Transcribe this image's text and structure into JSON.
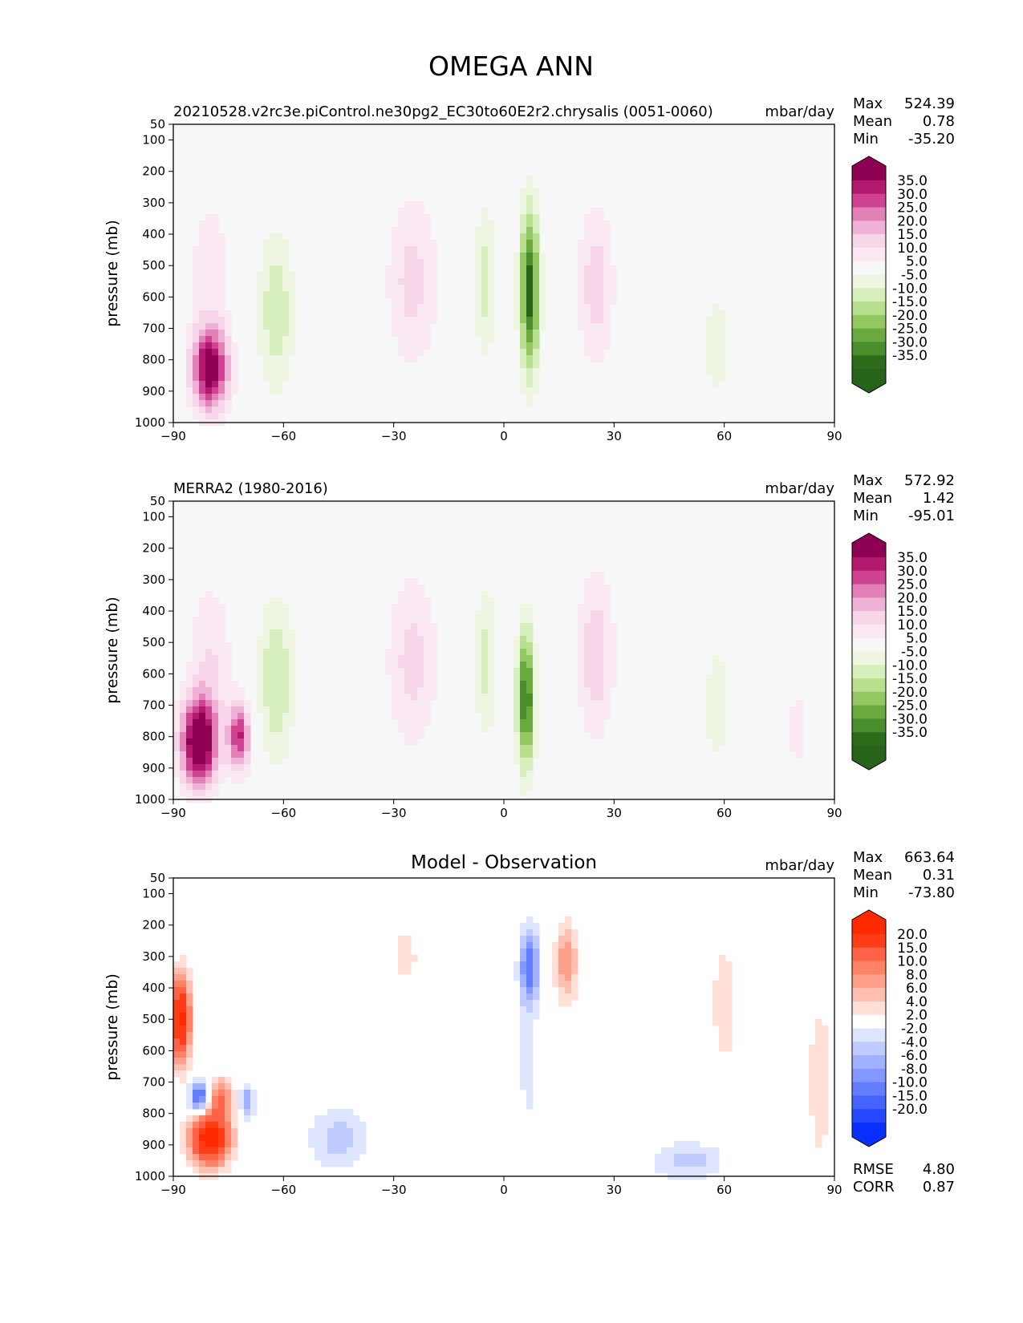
{
  "figure": {
    "title": "OMEGA ANN"
  },
  "chart_data": [
    {
      "type": "heatmap",
      "title_left": "20210528.v2rc3e.piControl.ne30pg2_EC30to60E2r2.chrysalis (0051-0060)",
      "title_center": "",
      "units": "mbar/day",
      "ylabel": "pressure (mb)",
      "xlim": [
        -90,
        90
      ],
      "ylim": [
        1000,
        50
      ],
      "x_ticks": [
        -90,
        -60,
        -30,
        0,
        30,
        60,
        90
      ],
      "x_tick_labels": [
        "−90",
        "−60",
        "−30",
        "0",
        "30",
        "60",
        "90"
      ],
      "y_ticks": [
        50,
        100,
        200,
        300,
        400,
        500,
        600,
        700,
        800,
        900,
        1000
      ],
      "y_tick_labels": [
        "50",
        "100",
        "200",
        "300",
        "400",
        "500",
        "600",
        "700",
        "800",
        "900",
        "1000"
      ],
      "stats": {
        "labels": [
          "Max",
          "Mean",
          "Min"
        ],
        "values": [
          "524.39",
          "0.78",
          "-35.20"
        ]
      },
      "colorbar": {
        "labels": [
          "35.0",
          "30.0",
          "25.0",
          "20.0",
          "15.0",
          "10.0",
          "5.0",
          "-5.0",
          "-10.0",
          "-15.0",
          "-20.0",
          "-25.0",
          "-30.0",
          "-35.0"
        ],
        "colors": [
          "#8e0152",
          "#b3196e",
          "#cf4393",
          "#e181b8",
          "#efb2d6",
          "#f7d6ea",
          "#fae9f3",
          "#f7f7f7",
          "#eef6e1",
          "#d7efbd",
          "#b8e08e",
          "#93c761",
          "#6aa93d",
          "#4a8d2c",
          "#2c6b1a",
          "#276419"
        ]
      },
      "features": [
        {
          "lat": -80,
          "p": 830,
          "wlat": 5,
          "wp": 130,
          "v": 40
        },
        {
          "lat": -80,
          "p": 500,
          "wlat": 6,
          "wp": 250,
          "v": 8
        },
        {
          "lat": -62,
          "p": 650,
          "wlat": 5,
          "wp": 260,
          "v": -14
        },
        {
          "lat": -25,
          "p": 550,
          "wlat": 7,
          "wp": 280,
          "v": 12
        },
        {
          "lat": -5,
          "p": 550,
          "wlat": 3,
          "wp": 250,
          "v": -12
        },
        {
          "lat": 7,
          "p": 580,
          "wlat": 2.6,
          "wp": 260,
          "v": -38
        },
        {
          "lat": 25,
          "p": 560,
          "wlat": 5,
          "wp": 260,
          "v": 13
        },
        {
          "lat": 58,
          "p": 750,
          "wlat": 4,
          "wp": 200,
          "v": -8
        }
      ]
    },
    {
      "type": "heatmap",
      "title_left": "MERRA2 (1980-2016)",
      "title_center": "",
      "units": "mbar/day",
      "ylabel": "pressure (mb)",
      "xlim": [
        -90,
        90
      ],
      "ylim": [
        1000,
        50
      ],
      "x_ticks": [
        -90,
        -60,
        -30,
        0,
        30,
        60,
        90
      ],
      "x_tick_labels": [
        "−90",
        "−60",
        "−30",
        "0",
        "30",
        "60",
        "90"
      ],
      "y_ticks": [
        50,
        100,
        200,
        300,
        400,
        500,
        600,
        700,
        800,
        900,
        1000
      ],
      "y_tick_labels": [
        "50",
        "100",
        "200",
        "300",
        "400",
        "500",
        "600",
        "700",
        "800",
        "900",
        "1000"
      ],
      "stats": {
        "labels": [
          "Max",
          "Mean",
          "Min"
        ],
        "values": [
          "572.92",
          "1.42",
          "-95.01"
        ]
      },
      "colorbar": {
        "labels": [
          "35.0",
          "30.0",
          "25.0",
          "20.0",
          "15.0",
          "10.0",
          "5.0",
          "-5.0",
          "-10.0",
          "-15.0",
          "-20.0",
          "-25.0",
          "-30.0",
          "-35.0"
        ],
        "colors": [
          "#8e0152",
          "#b3196e",
          "#cf4393",
          "#e181b8",
          "#efb2d6",
          "#f7d6ea",
          "#fae9f3",
          "#f7f7f7",
          "#eef6e1",
          "#d7efbd",
          "#b8e08e",
          "#93c761",
          "#6aa93d",
          "#4a8d2c",
          "#2c6b1a",
          "#276419"
        ]
      },
      "features": [
        {
          "lat": -83,
          "p": 820,
          "wlat": 5,
          "wp": 140,
          "v": 45
        },
        {
          "lat": -72,
          "p": 800,
          "wlat": 3,
          "wp": 110,
          "v": 30
        },
        {
          "lat": -80,
          "p": 550,
          "wlat": 6,
          "wp": 250,
          "v": 10
        },
        {
          "lat": -62,
          "p": 620,
          "wlat": 5,
          "wp": 260,
          "v": -15
        },
        {
          "lat": -25,
          "p": 560,
          "wlat": 7,
          "wp": 280,
          "v": 12
        },
        {
          "lat": -5,
          "p": 560,
          "wlat": 3,
          "wp": 250,
          "v": -12
        },
        {
          "lat": 6,
          "p": 680,
          "wlat": 2.4,
          "wp": 220,
          "v": -36
        },
        {
          "lat": 25,
          "p": 540,
          "wlat": 5,
          "wp": 260,
          "v": 14
        },
        {
          "lat": 58,
          "p": 700,
          "wlat": 4,
          "wp": 220,
          "v": -8
        },
        {
          "lat": 80,
          "p": 780,
          "wlat": 3,
          "wp": 140,
          "v": 8
        }
      ]
    },
    {
      "type": "heatmap",
      "title_left": "",
      "title_center": "Model - Observation",
      "units": "mbar/day",
      "ylabel": "pressure (mb)",
      "xlim": [
        -90,
        90
      ],
      "ylim": [
        1000,
        50
      ],
      "x_ticks": [
        -90,
        -60,
        -30,
        0,
        30,
        60,
        90
      ],
      "x_tick_labels": [
        "−90",
        "−60",
        "−30",
        "0",
        "30",
        "60",
        "90"
      ],
      "y_ticks": [
        50,
        100,
        200,
        300,
        400,
        500,
        600,
        700,
        800,
        900,
        1000
      ],
      "y_tick_labels": [
        "50",
        "100",
        "200",
        "300",
        "400",
        "500",
        "600",
        "700",
        "800",
        "900",
        "1000"
      ],
      "stats": {
        "labels": [
          "Max",
          "Mean",
          "Min"
        ],
        "values": [
          "663.64",
          "0.31",
          "-73.80"
        ]
      },
      "metrics": {
        "labels": [
          "RMSE",
          "CORR"
        ],
        "values": [
          "4.80",
          "0.87"
        ]
      },
      "colorbar": {
        "labels": [
          "20.0",
          "15.0",
          "10.0",
          "8.0",
          "6.0",
          "4.0",
          "2.0",
          "-2.0",
          "-4.0",
          "-6.0",
          "-8.0",
          "-10.0",
          "-15.0",
          "-20.0"
        ],
        "colors": [
          "#ff2a00",
          "#ff3d14",
          "#ff6347",
          "#ff8266",
          "#ffa08a",
          "#ffbfb0",
          "#ffdfd6",
          "#ffffff",
          "#dfe5ff",
          "#bfcbff",
          "#a0b1ff",
          "#8297ff",
          "#637dff",
          "#4563ff",
          "#2649ff",
          "#0730ff"
        ]
      },
      "features": [
        {
          "lat": -88,
          "p": 500,
          "wlat": 2.5,
          "wp": 130,
          "v": 22
        },
        {
          "lat": -83,
          "p": 750,
          "wlat": 2.5,
          "wp": 50,
          "v": -14
        },
        {
          "lat": -77,
          "p": 750,
          "wlat": 3,
          "wp": 60,
          "v": 10
        },
        {
          "lat": -80,
          "p": 880,
          "wlat": 5,
          "wp": 80,
          "v": 25
        },
        {
          "lat": -70,
          "p": 760,
          "wlat": 2,
          "wp": 50,
          "v": -8
        },
        {
          "lat": -45,
          "p": 880,
          "wlat": 8,
          "wp": 100,
          "v": -5
        },
        {
          "lat": -27,
          "p": 300,
          "wlat": 4,
          "wp": 110,
          "v": 3
        },
        {
          "lat": 7,
          "p": 330,
          "wlat": 2.5,
          "wp": 110,
          "v": -12
        },
        {
          "lat": 6,
          "p": 650,
          "wlat": 3,
          "wp": 250,
          "v": -4
        },
        {
          "lat": 17,
          "p": 320,
          "wlat": 3,
          "wp": 120,
          "v": 8
        },
        {
          "lat": 5,
          "p": 780,
          "wlat": 1.5,
          "wp": 60,
          "v": 4
        },
        {
          "lat": 50,
          "p": 950,
          "wlat": 10,
          "wp": 60,
          "v": -5
        },
        {
          "lat": 60,
          "p": 450,
          "wlat": 4,
          "wp": 250,
          "v": 3
        },
        {
          "lat": 86,
          "p": 700,
          "wlat": 3,
          "wp": 250,
          "v": 4
        }
      ]
    }
  ]
}
